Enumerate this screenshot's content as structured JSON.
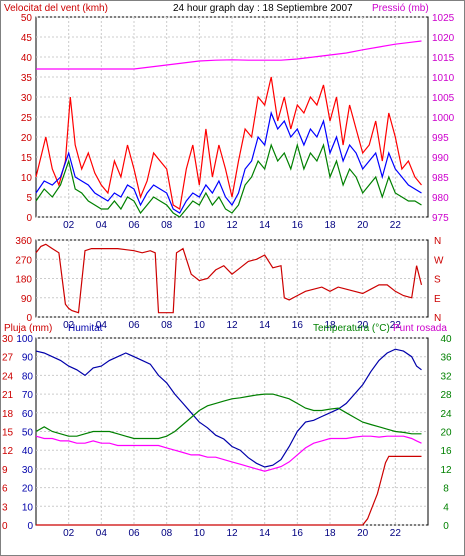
{
  "chart_data": [
    {
      "type": "line",
      "title": "24 hour graph day : 18 Septiembre 2007",
      "left_label": "Velocitat del vent (kmh)",
      "right_label": "Pressió (mb)",
      "x_ticks": [
        "02",
        "04",
        "06",
        "08",
        "10",
        "12",
        "14",
        "16",
        "18",
        "20",
        "22"
      ],
      "left_ticks": [
        "50",
        "45",
        "40",
        "35",
        "30",
        "25",
        "20",
        "15",
        "10",
        "5",
        "0"
      ],
      "right_ticks": [
        "1025",
        "1020",
        "1015",
        "1010",
        "1005",
        "1000",
        "995",
        "990",
        "985",
        "980",
        "975"
      ],
      "ylim_left": [
        0,
        50
      ],
      "ylim_right": [
        975,
        1025
      ],
      "series": [
        {
          "key": "gust",
          "color": "#ff0000",
          "axis": "left",
          "x": [
            0,
            0.3,
            0.6,
            1.0,
            1.4,
            1.8,
            2.1,
            2.4,
            2.8,
            3.2,
            3.6,
            4.0,
            4.4,
            4.8,
            5.2,
            5.6,
            6.0,
            6.4,
            6.8,
            7.2,
            7.6,
            8.0,
            8.4,
            8.8,
            9.2,
            9.6,
            10.0,
            10.4,
            10.8,
            11.2,
            11.6,
            12.0,
            12.4,
            12.8,
            13.2,
            13.6,
            14.0,
            14.4,
            14.8,
            15.2,
            15.6,
            16.0,
            16.4,
            16.8,
            17.2,
            17.6,
            18.0,
            18.4,
            18.8,
            19.2,
            19.6,
            20.0,
            20.4,
            20.8,
            21.2,
            21.6,
            22.0,
            22.4,
            22.8,
            23.2,
            23.6
          ],
          "values": [
            10,
            15,
            20,
            12,
            8,
            14,
            30,
            18,
            12,
            16,
            11,
            8,
            6,
            14,
            10,
            18,
            12,
            5,
            9,
            16,
            14,
            12,
            3,
            2,
            12,
            18,
            8,
            22,
            10,
            18,
            12,
            5,
            14,
            22,
            20,
            30,
            28,
            35,
            24,
            30,
            22,
            28,
            26,
            30,
            28,
            33,
            24,
            30,
            18,
            28,
            22,
            16,
            18,
            24,
            14,
            26,
            20,
            12,
            14,
            10,
            8
          ]
        },
        {
          "key": "avg",
          "color": "#0000ff",
          "axis": "left",
          "x": [
            0,
            0.5,
            1.0,
            1.5,
            2.0,
            2.4,
            2.8,
            3.2,
            3.6,
            4.0,
            4.4,
            4.8,
            5.2,
            5.6,
            6.0,
            6.4,
            6.8,
            7.2,
            7.6,
            8.0,
            8.4,
            8.8,
            9.2,
            9.6,
            10.0,
            10.4,
            10.8,
            11.2,
            11.6,
            12.0,
            12.4,
            12.8,
            13.2,
            13.6,
            14.0,
            14.4,
            14.8,
            15.2,
            15.6,
            16.0,
            16.4,
            16.8,
            17.2,
            17.6,
            18.0,
            18.4,
            18.8,
            19.2,
            19.6,
            20.0,
            20.4,
            20.8,
            21.2,
            21.6,
            22.0,
            22.4,
            22.8,
            23.2,
            23.6
          ],
          "values": [
            6,
            9,
            8,
            10,
            16,
            10,
            9,
            8,
            6,
            5,
            4,
            6,
            5,
            8,
            7,
            3,
            6,
            8,
            7,
            6,
            2,
            1,
            4,
            6,
            5,
            8,
            6,
            9,
            5,
            3,
            6,
            12,
            14,
            20,
            18,
            26,
            22,
            24,
            20,
            22,
            18,
            22,
            20,
            24,
            16,
            20,
            14,
            18,
            16,
            12,
            14,
            16,
            10,
            16,
            12,
            10,
            8,
            7,
            6
          ]
        },
        {
          "key": "low",
          "color": "#008000",
          "axis": "left",
          "x": [
            0,
            0.5,
            1.0,
            1.5,
            2.0,
            2.4,
            2.8,
            3.2,
            3.6,
            4.0,
            4.4,
            4.8,
            5.2,
            5.6,
            6.0,
            6.4,
            6.8,
            7.2,
            7.6,
            8.0,
            8.4,
            8.8,
            9.2,
            9.6,
            10.0,
            10.4,
            10.8,
            11.2,
            11.6,
            12.0,
            12.4,
            12.8,
            13.2,
            13.6,
            14.0,
            14.4,
            14.8,
            15.2,
            15.6,
            16.0,
            16.4,
            16.8,
            17.2,
            17.6,
            18.0,
            18.4,
            18.8,
            19.2,
            19.6,
            20.0,
            20.4,
            20.8,
            21.2,
            21.6,
            22.0,
            22.4,
            22.8,
            23.2,
            23.6
          ],
          "values": [
            4,
            7,
            5,
            8,
            14,
            7,
            6,
            4,
            3,
            2,
            2,
            4,
            2,
            5,
            4,
            1,
            3,
            5,
            4,
            3,
            1,
            0,
            2,
            4,
            3,
            6,
            3,
            5,
            2,
            1,
            3,
            8,
            10,
            14,
            12,
            18,
            14,
            16,
            12,
            18,
            12,
            16,
            14,
            18,
            10,
            14,
            8,
            12,
            10,
            6,
            8,
            10,
            5,
            10,
            6,
            5,
            4,
            4,
            3
          ]
        },
        {
          "key": "pressure",
          "color": "#ff00ff",
          "axis": "right",
          "x": [
            0,
            2,
            4,
            6,
            7,
            8,
            9,
            10,
            11,
            12,
            13,
            14,
            15,
            16,
            17,
            18,
            19,
            20,
            21,
            22,
            23,
            23.6
          ],
          "values": [
            1012,
            1012,
            1012,
            1012,
            1012.5,
            1013,
            1013.5,
            1014,
            1014.2,
            1014.3,
            1014.2,
            1014.2,
            1014.2,
            1014.5,
            1015,
            1015.5,
            1016,
            1016.8,
            1017.5,
            1018.2,
            1018.7,
            1019
          ]
        }
      ]
    },
    {
      "type": "line",
      "left_ticks": [
        "360",
        "270",
        "180",
        "90",
        "0"
      ],
      "right_ticks": [
        "N",
        "W",
        "S",
        "E",
        "N"
      ],
      "ylim": [
        0,
        360
      ],
      "x_ticks": [
        "02",
        "04",
        "06",
        "08",
        "10",
        "12",
        "14",
        "16",
        "18",
        "20",
        "22"
      ],
      "series": [
        {
          "key": "direction",
          "color": "#cc0000",
          "x": [
            0,
            0.3,
            0.6,
            1.0,
            1.4,
            1.8,
            2.0,
            2.2,
            2.6,
            3.0,
            3.4,
            4.0,
            5.0,
            6.0,
            6.5,
            7.0,
            7.3,
            7.5,
            8.0,
            8.4,
            8.6,
            8.8,
            9.0,
            9.5,
            10.0,
            10.5,
            11.0,
            11.5,
            12.0,
            12.5,
            13.0,
            13.5,
            14.0,
            14.5,
            15.0,
            15.2,
            15.5,
            16.0,
            16.5,
            17.0,
            17.5,
            18.0,
            18.5,
            19.0,
            19.5,
            20.0,
            20.5,
            21.0,
            21.5,
            22.0,
            22.5,
            23.0,
            23.3,
            23.6
          ],
          "values": [
            300,
            330,
            340,
            320,
            300,
            60,
            40,
            30,
            20,
            310,
            320,
            320,
            320,
            310,
            300,
            310,
            300,
            20,
            20,
            20,
            300,
            310,
            320,
            200,
            170,
            180,
            220,
            240,
            200,
            230,
            260,
            270,
            290,
            230,
            240,
            90,
            80,
            100,
            120,
            130,
            140,
            120,
            140,
            130,
            120,
            110,
            130,
            150,
            150,
            120,
            100,
            90,
            240,
            150
          ]
        }
      ]
    },
    {
      "type": "line",
      "left_label": "Pluja (mm)",
      "left_label2": "Humitat",
      "right_label": "Temperatura (°C)",
      "right_label2": "Punt rosada",
      "rain_ticks": [
        "30",
        "27",
        "24",
        "21",
        "18",
        "15",
        "12",
        "9",
        "6",
        "3",
        "0"
      ],
      "hum_ticks": [
        "100",
        "90",
        "80",
        "70",
        "60",
        "50",
        "40",
        "30",
        "20",
        "10",
        "0"
      ],
      "temp_ticks": [
        "40",
        "36",
        "32",
        "28",
        "24",
        "20",
        "16",
        "12",
        "8",
        "4",
        "0"
      ],
      "x_ticks": [
        "02",
        "04",
        "06",
        "08",
        "10",
        "12",
        "14",
        "16",
        "18",
        "20",
        "22"
      ],
      "series": [
        {
          "key": "humidity",
          "color": "#0000aa",
          "axis": "hum",
          "x": [
            0,
            0.5,
            1.0,
            1.5,
            2.0,
            2.5,
            3.0,
            3.5,
            4.0,
            4.5,
            5.0,
            5.5,
            6.0,
            6.5,
            7.0,
            7.5,
            8.0,
            8.5,
            9.0,
            9.5,
            10.0,
            10.5,
            11.0,
            11.5,
            12.0,
            12.5,
            13.0,
            13.5,
            14.0,
            14.5,
            15.0,
            15.5,
            16.0,
            16.5,
            17.0,
            17.5,
            18.0,
            18.5,
            19.0,
            19.5,
            20.0,
            20.5,
            21.0,
            21.5,
            22.0,
            22.5,
            23.0,
            23.3,
            23.6
          ],
          "values": [
            93,
            92,
            90,
            88,
            85,
            83,
            80,
            84,
            85,
            88,
            90,
            92,
            90,
            88,
            86,
            80,
            76,
            70,
            65,
            60,
            55,
            52,
            48,
            46,
            42,
            40,
            36,
            33,
            31,
            32,
            35,
            42,
            50,
            55,
            56,
            58,
            60,
            62,
            65,
            70,
            75,
            82,
            88,
            92,
            94,
            93,
            90,
            85,
            83
          ]
        },
        {
          "key": "temperature",
          "color": "#008000",
          "axis": "temp",
          "x": [
            0,
            0.5,
            1.0,
            1.5,
            2.0,
            2.5,
            3.0,
            3.5,
            4.0,
            4.5,
            5.0,
            5.5,
            6.0,
            6.5,
            7.0,
            7.5,
            8.0,
            8.5,
            9.0,
            9.5,
            10.0,
            10.5,
            11.0,
            11.5,
            12.0,
            12.5,
            13.0,
            13.5,
            14.0,
            14.5,
            15.0,
            15.5,
            16.0,
            16.5,
            17.0,
            17.5,
            18.0,
            18.5,
            19.0,
            19.5,
            20.0,
            20.5,
            21.0,
            21.5,
            22.0,
            22.5,
            23.0,
            23.3,
            23.6
          ],
          "values": [
            20,
            21,
            20,
            19.5,
            19,
            19,
            19.5,
            20,
            20,
            20,
            19.5,
            19,
            18.5,
            18.5,
            18.5,
            18.5,
            19,
            20,
            21.5,
            23,
            24.5,
            25.5,
            26,
            26.5,
            27,
            27.2,
            27.5,
            27.8,
            28,
            28,
            27.5,
            27,
            26,
            25,
            24.5,
            24.5,
            24.8,
            25,
            24,
            23,
            22,
            21.5,
            21,
            20.5,
            20,
            19.8,
            19.5,
            19.5,
            19.5
          ]
        },
        {
          "key": "dewpoint",
          "color": "#ff00ff",
          "axis": "temp",
          "x": [
            0,
            0.5,
            1.0,
            1.5,
            2.0,
            2.5,
            3.0,
            3.5,
            4.0,
            4.5,
            5.0,
            5.5,
            6.0,
            6.5,
            7.0,
            7.5,
            8.0,
            8.5,
            9.0,
            9.5,
            10.0,
            10.5,
            11.0,
            11.5,
            12.0,
            12.5,
            13.0,
            13.5,
            14.0,
            14.5,
            15.0,
            15.5,
            16.0,
            16.5,
            17.0,
            17.5,
            18.0,
            18.5,
            19.0,
            19.5,
            20.0,
            20.5,
            21.0,
            21.5,
            22.0,
            22.5,
            23.0,
            23.3,
            23.6
          ],
          "values": [
            19,
            18.5,
            18.5,
            18,
            18,
            17.5,
            17.5,
            18,
            17.5,
            17.5,
            17,
            17,
            17,
            17,
            17,
            17,
            16.5,
            16,
            15.5,
            15,
            15,
            14.5,
            14.5,
            14,
            13.5,
            13,
            12.5,
            12,
            11.5,
            12,
            12.5,
            13.5,
            15,
            16.5,
            17.5,
            18,
            18.5,
            18.5,
            18.5,
            18.8,
            19,
            19,
            18.8,
            19,
            19,
            19,
            18.5,
            18,
            17.5
          ]
        },
        {
          "key": "rain",
          "color": "#cc0000",
          "axis": "rain",
          "x": [
            0,
            20.0,
            20.3,
            20.6,
            20.9,
            21.2,
            21.4,
            21.6,
            22.0,
            22.5,
            23.0,
            23.6
          ],
          "values": [
            0,
            0,
            1,
            3,
            5,
            8,
            10,
            11,
            11,
            11,
            11,
            11
          ]
        }
      ]
    }
  ]
}
